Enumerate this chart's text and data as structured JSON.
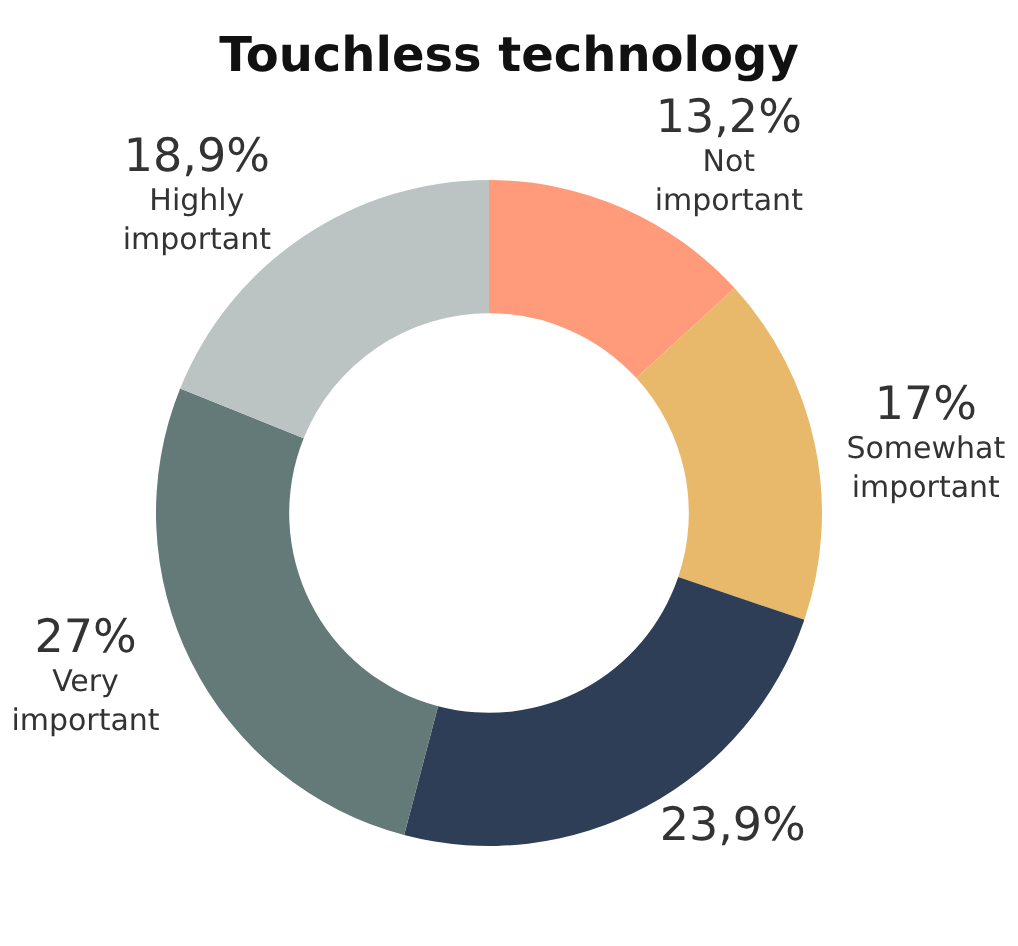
{
  "chart_data": {
    "type": "donut",
    "title": "Touchless technology",
    "categories": [
      "Not important",
      "Somewhat important",
      null,
      "Very important",
      "Highly important"
    ],
    "values": [
      13.2,
      17,
      23.9,
      27,
      18.9
    ],
    "value_labels": [
      "13,2%",
      "17%",
      "23,9%",
      "27%",
      "18,9%"
    ],
    "colors": [
      "#ff9a7a",
      "#e8b86b",
      "#2e3e56",
      "#637a78",
      "#bbc4c3"
    ],
    "legend": false
  }
}
